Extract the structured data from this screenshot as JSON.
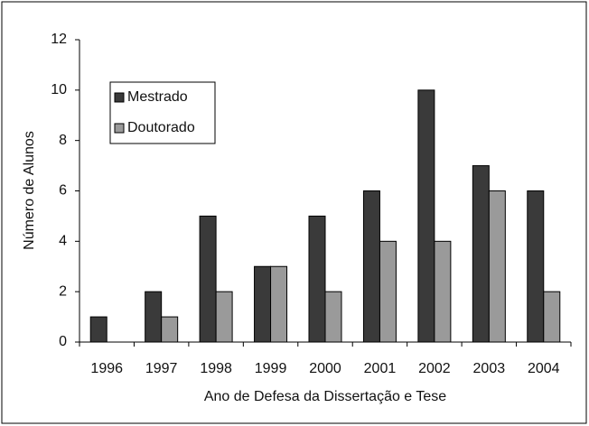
{
  "chart_data": {
    "type": "bar",
    "xlabel": "Ano de Defesa da Dissertação e Tese",
    "ylabel": "Número de Alunos",
    "categories": [
      "1996",
      "1997",
      "1998",
      "1999",
      "2000",
      "2001",
      "2002",
      "2003",
      "2004"
    ],
    "series": [
      {
        "name": "Mestrado",
        "color": "#3a3a3a",
        "values": [
          1,
          2,
          5,
          3,
          5,
          6,
          10,
          7,
          6
        ]
      },
      {
        "name": "Doutorado",
        "color": "#9a9a9a",
        "values": [
          0,
          1,
          2,
          3,
          2,
          4,
          4,
          6,
          2
        ]
      }
    ],
    "ylim": [
      0,
      12
    ],
    "yticks": [
      0,
      2,
      4,
      6,
      8,
      10,
      12
    ],
    "legend": "upper left"
  }
}
